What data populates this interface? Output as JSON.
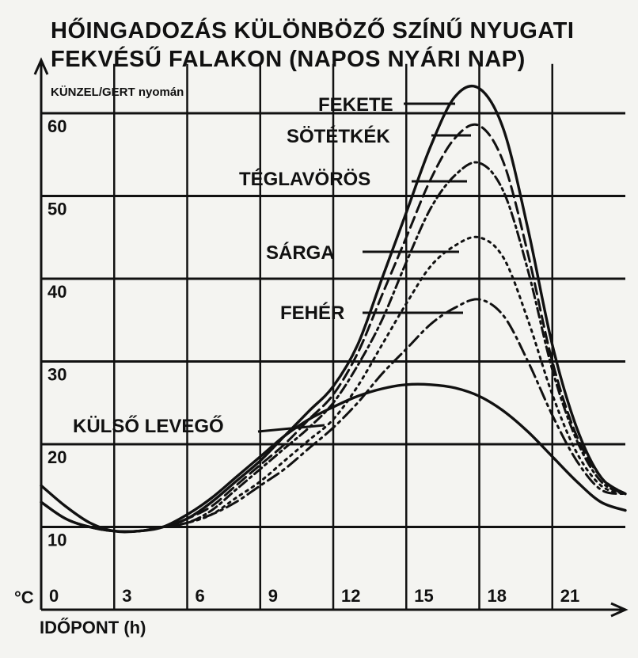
{
  "chart_data": {
    "type": "line",
    "title_lines": [
      "HŐINGADOZÁS KÜLÖNBÖZŐ SZÍNŰ NYUGATI",
      "FEKVÉSŰ FALAKON (NAPOS NYÁRI NAP)"
    ],
    "source": "KÜNZEL/GERT nyomán",
    "xlabel": "IDŐPONT (h)",
    "ylabel": "°C",
    "xlim": [
      0,
      24
    ],
    "ylim": [
      0,
      65
    ],
    "x_ticks": [
      0,
      3,
      6,
      9,
      12,
      15,
      18,
      21
    ],
    "y_ticks": [
      10,
      20,
      30,
      40,
      50,
      60
    ],
    "grid": true,
    "series": [
      {
        "name": "FEKETE",
        "style": "solid",
        "x": [
          0,
          1,
          2,
          3,
          4,
          5,
          6,
          7,
          8,
          9,
          10,
          11,
          12,
          13,
          14,
          15,
          16,
          17,
          18,
          19,
          20,
          21,
          22,
          23,
          24
        ],
        "y": [
          13,
          11,
          10,
          9.5,
          9.5,
          10,
          11,
          13,
          15.5,
          18,
          21,
          24,
          27,
          32,
          40,
          48,
          56,
          62,
          63,
          58,
          46,
          32,
          22,
          16,
          14
        ]
      },
      {
        "name": "SÖTÉTKÉK",
        "style": "dashed",
        "x": [
          0,
          1,
          2,
          3,
          4,
          5,
          6,
          7,
          8,
          9,
          10,
          11,
          12,
          13,
          14,
          15,
          16,
          17,
          18,
          19,
          20,
          21,
          22,
          23,
          24
        ],
        "y": [
          13,
          11,
          10,
          9.5,
          9.5,
          10,
          11,
          12.5,
          15,
          17.5,
          20,
          23,
          26,
          31,
          38,
          45,
          52,
          57,
          58.5,
          54,
          43,
          30,
          21,
          16,
          14
        ]
      },
      {
        "name": "TÉGLAVÖRÖS",
        "style": "dashdot",
        "x": [
          0,
          1,
          2,
          3,
          4,
          5,
          6,
          7,
          8,
          9,
          10,
          11,
          12,
          13,
          14,
          15,
          16,
          17,
          18,
          19,
          20,
          21,
          22,
          23,
          24
        ],
        "y": [
          13,
          11,
          10,
          9.5,
          9.5,
          10,
          10.5,
          12,
          14.5,
          17,
          19.5,
          22,
          25,
          29.5,
          35,
          42,
          48.5,
          52.5,
          54,
          50.5,
          41,
          29,
          20.5,
          15.5,
          14
        ]
      },
      {
        "name": "SÁRGA",
        "style": "dotted",
        "x": [
          0,
          1,
          2,
          3,
          4,
          5,
          6,
          7,
          8,
          9,
          10,
          11,
          12,
          13,
          14,
          15,
          16,
          17,
          18,
          19,
          20,
          21,
          22,
          23,
          24
        ],
        "y": [
          13,
          11,
          10,
          9.5,
          9.5,
          10,
          10.5,
          11.5,
          13.5,
          15.5,
          18,
          20.5,
          23,
          27,
          32,
          37,
          41.5,
          44,
          45,
          42.5,
          35,
          26,
          19,
          15,
          14
        ]
      },
      {
        "name": "FEHÉR",
        "style": "dashdot-long",
        "x": [
          0,
          1,
          2,
          3,
          4,
          5,
          6,
          7,
          8,
          9,
          10,
          11,
          12,
          13,
          14,
          15,
          16,
          17,
          18,
          19,
          20,
          21,
          22,
          23,
          24
        ],
        "y": [
          13,
          11,
          10,
          9.5,
          9.5,
          10,
          10.5,
          11.5,
          13,
          15,
          17,
          19.5,
          22,
          25,
          28.5,
          31.5,
          34.5,
          36.5,
          37.5,
          35.5,
          30,
          23.5,
          18,
          14.5,
          14
        ]
      },
      {
        "name": "KÜLSŐ LEVEGŐ",
        "style": "solid",
        "x": [
          0,
          1,
          2,
          3,
          4,
          5,
          6,
          7,
          8,
          9,
          10,
          11,
          12,
          13,
          14,
          15,
          16,
          17,
          18,
          19,
          20,
          21,
          22,
          23,
          24
        ],
        "y": [
          15,
          12.5,
          10.5,
          9.5,
          9.5,
          10,
          11.5,
          13.5,
          16,
          18.5,
          21,
          23,
          24.5,
          25.8,
          26.7,
          27.2,
          27.2,
          26.8,
          25.8,
          24,
          21.5,
          18.5,
          15.5,
          13,
          12
        ]
      }
    ]
  }
}
